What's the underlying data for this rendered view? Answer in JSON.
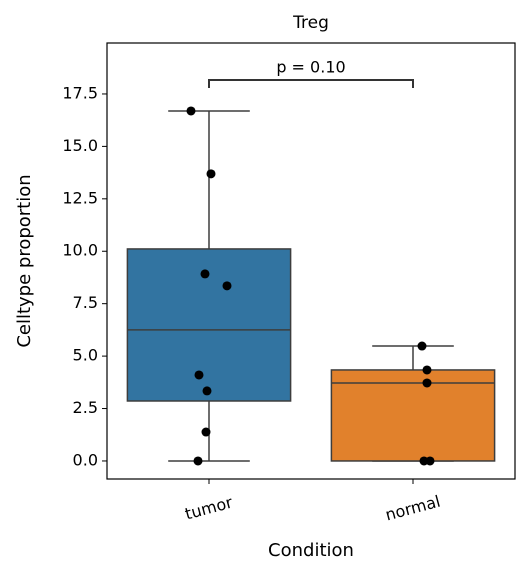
{
  "chart_data": {
    "type": "box",
    "title": "Treg",
    "xlabel": "Condition",
    "ylabel": "Celltype proportion",
    "categories": [
      "tumor",
      "normal"
    ],
    "boxes": [
      {
        "color": "#3274a1",
        "min": 0,
        "q1": 2.86,
        "median": 6.25,
        "q3": 10.11,
        "max": 16.69,
        "points": [
          16.69,
          13.69,
          8.92,
          8.35,
          4.1,
          3.34,
          1.38,
          0
        ]
      },
      {
        "color": "#e1812c",
        "min": 0,
        "q1": 0,
        "median": 3.72,
        "q3": 4.34,
        "max": 5.48,
        "points": [
          5.48,
          4.34,
          3.72,
          0,
          0
        ]
      }
    ],
    "annotation": "p = 0.10",
    "ylim": [
      -0.86,
      19.93
    ],
    "yticks": [
      {
        "value": 0,
        "label": "0.0"
      },
      2.5,
      {
        "value": 5,
        "label": "5.0"
      },
      7.5,
      {
        "value": 10,
        "label": "10.0"
      },
      12.5,
      {
        "value": 15,
        "label": "15.0"
      },
      17.5
    ]
  }
}
